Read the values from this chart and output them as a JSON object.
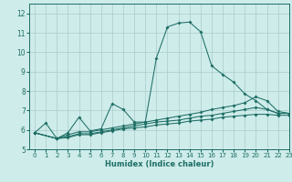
{
  "xlabel": "Humidex (Indice chaleur)",
  "xlim": [
    -0.5,
    23
  ],
  "ylim": [
    5,
    12.5
  ],
  "bg_color": "#ceecea",
  "grid_color": "#a8ccc9",
  "line_color": "#1e6e65",
  "xticks": [
    0,
    1,
    2,
    3,
    4,
    5,
    6,
    7,
    8,
    9,
    10,
    11,
    12,
    13,
    14,
    15,
    16,
    17,
    18,
    19,
    20,
    21,
    22,
    23
  ],
  "yticks": [
    5,
    6,
    7,
    8,
    9,
    10,
    11,
    12
  ],
  "curves": [
    {
      "x": [
        0,
        1,
        2,
        3,
        4,
        5,
        6,
        7,
        8,
        9,
        10,
        11,
        12,
        13,
        14,
        15,
        16,
        17,
        18,
        19,
        20,
        21,
        22,
        23
      ],
      "y": [
        5.85,
        6.35,
        5.55,
        5.85,
        6.65,
        5.95,
        6.05,
        7.35,
        7.05,
        6.4,
        6.4,
        9.7,
        11.3,
        11.5,
        11.55,
        11.05,
        9.3,
        8.85,
        8.45,
        7.85,
        7.5,
        7.05,
        6.85,
        6.85
      ]
    },
    {
      "x": [
        0,
        2,
        3,
        4,
        5,
        6,
        7,
        8,
        9,
        10,
        11,
        12,
        13,
        14,
        15,
        16,
        17,
        18,
        19,
        20,
        21,
        22,
        23
      ],
      "y": [
        5.85,
        5.55,
        5.75,
        5.9,
        5.9,
        6.0,
        6.1,
        6.2,
        6.3,
        6.4,
        6.5,
        6.6,
        6.7,
        6.8,
        6.9,
        7.05,
        7.15,
        7.25,
        7.4,
        7.7,
        7.5,
        6.95,
        6.85
      ]
    },
    {
      "x": [
        0,
        2,
        3,
        4,
        5,
        6,
        7,
        8,
        9,
        10,
        11,
        12,
        13,
        14,
        15,
        16,
        17,
        18,
        19,
        20,
        21,
        22,
        23
      ],
      "y": [
        5.85,
        5.55,
        5.65,
        5.8,
        5.8,
        5.9,
        6.0,
        6.1,
        6.2,
        6.3,
        6.4,
        6.45,
        6.5,
        6.6,
        6.7,
        6.75,
        6.85,
        6.95,
        7.05,
        7.15,
        7.05,
        6.85,
        6.85
      ]
    },
    {
      "x": [
        0,
        2,
        3,
        4,
        5,
        6,
        7,
        8,
        9,
        10,
        11,
        12,
        13,
        14,
        15,
        16,
        17,
        18,
        19,
        20,
        21,
        22,
        23
      ],
      "y": [
        5.85,
        5.55,
        5.6,
        5.75,
        5.75,
        5.85,
        5.95,
        6.05,
        6.1,
        6.15,
        6.25,
        6.3,
        6.35,
        6.45,
        6.5,
        6.55,
        6.65,
        6.7,
        6.75,
        6.8,
        6.8,
        6.75,
        6.75
      ]
    }
  ]
}
